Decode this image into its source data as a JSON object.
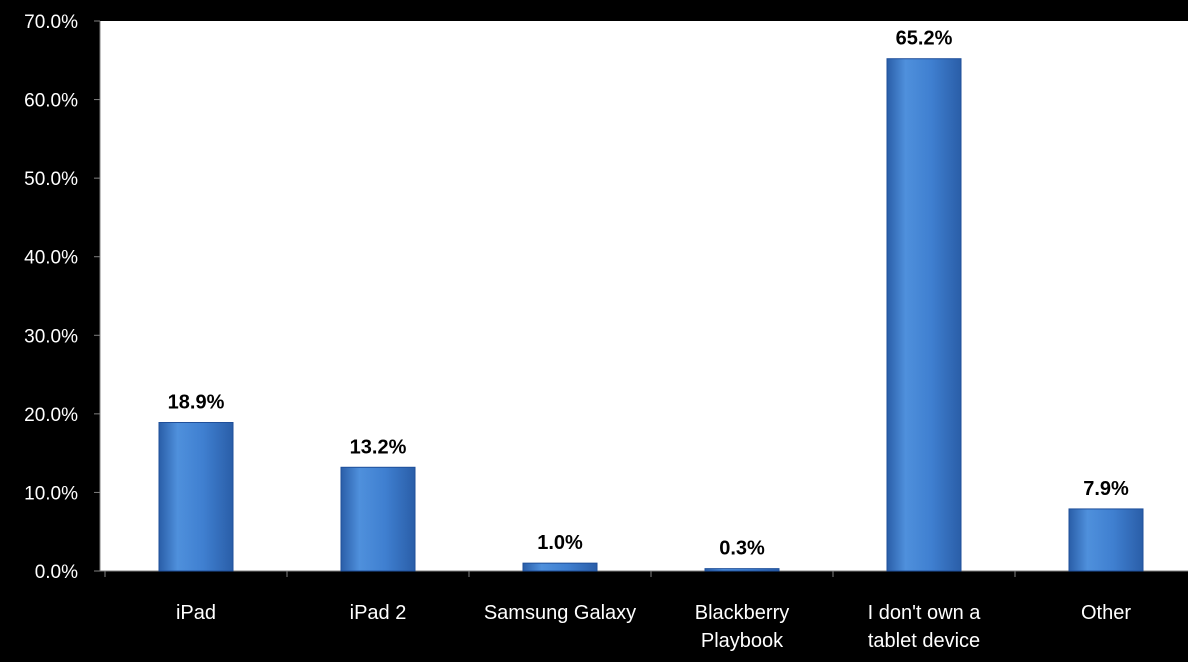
{
  "chart_data": {
    "type": "bar",
    "categories": [
      [
        "iPad"
      ],
      [
        "iPad 2"
      ],
      [
        "Samsung Galaxy"
      ],
      [
        "Blackberry",
        "Playbook"
      ],
      [
        "I don't own a",
        "tablet device"
      ],
      [
        "Other"
      ]
    ],
    "values": [
      18.9,
      13.2,
      1.0,
      0.3,
      65.2,
      7.9
    ],
    "data_labels": [
      "18.9%",
      "13.2%",
      "1.0%",
      "0.3%",
      "65.2%",
      "7.9%"
    ],
    "yticks": [
      "0.0%",
      "10.0%",
      "20.0%",
      "30.0%",
      "40.0%",
      "50.0%",
      "60.0%",
      "70.0%"
    ],
    "ylim": [
      0,
      70
    ],
    "title": "",
    "xlabel": "",
    "ylabel": "",
    "grid": false,
    "colors": {
      "page_background": "#000000",
      "plot_background": "#ffffff",
      "bar_fill": "#3f7fd0",
      "bar_edge": "#1f4f9a",
      "text": "#ffffff",
      "data_label": "#000000"
    }
  }
}
